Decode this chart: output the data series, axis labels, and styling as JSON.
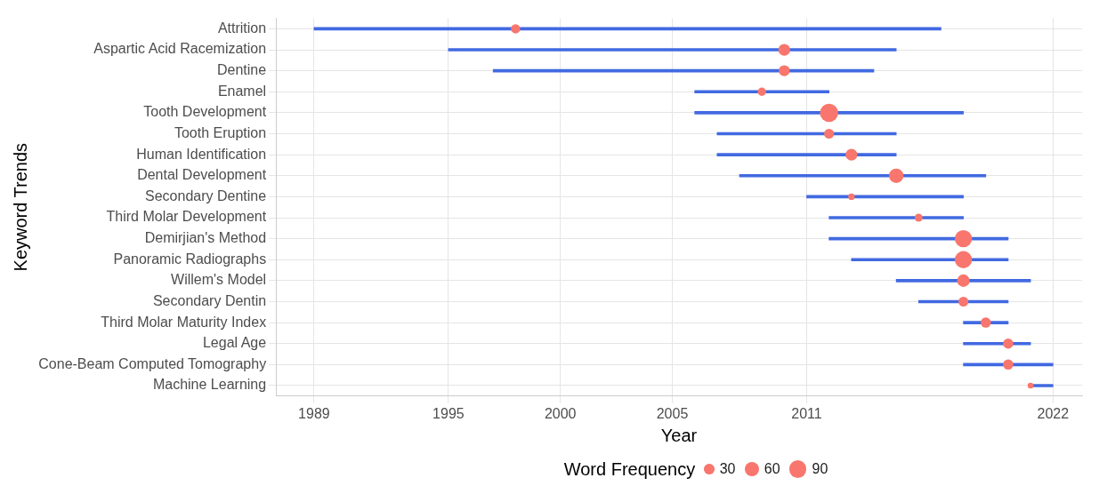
{
  "chart_data": {
    "type": "bar",
    "orientation": "horizontal",
    "xlabel": "Year",
    "ylabel": "Keyword Trends",
    "legend_title": "Word Frequency",
    "grid": true,
    "categories": [
      "Attrition",
      "Aspartic Acid Racemization",
      "Dentine",
      "Enamel",
      "Tooth Development",
      "Tooth Eruption",
      "Human Identification",
      "Dental Development",
      "Secondary Dentine",
      "Third Molar Development",
      "Demirjian's Method",
      "Panoramic Radiographs",
      "Willem's Model",
      "Secondary Dentin",
      "Third Molar Maturity Index",
      "Legal Age",
      "Cone-Beam Computed Tomography",
      "Machine Learning"
    ],
    "xlim": [
      1987.3,
      2023.3
    ],
    "xticks": [
      1989,
      1995,
      2000,
      2005,
      2011,
      2022
    ],
    "size_legend": [
      30,
      60,
      90
    ],
    "series": [
      {
        "color": "#4169e1",
        "base": [
          1989,
          1995,
          1997,
          2006,
          2006,
          2007,
          2007,
          2008,
          2011,
          2012,
          2012,
          2013,
          2015,
          2016,
          2018,
          2018,
          2018,
          2021
        ],
        "values": [
          28,
          20,
          17,
          6,
          12,
          8,
          8,
          11,
          7,
          6,
          8,
          7,
          6,
          4,
          2,
          3,
          4,
          1
        ]
      },
      {
        "type": "bubble",
        "color": "#f8766d",
        "values": [
          1998,
          2010,
          2010,
          2009,
          2012,
          2012,
          2013,
          2015,
          2013,
          2016,
          2018,
          2018,
          2018,
          2018,
          2019,
          2020,
          2020,
          2021
        ],
        "sizes": [
          25,
          40,
          35,
          20,
          95,
          28,
          40,
          60,
          12,
          18,
          85,
          85,
          45,
          28,
          30,
          30,
          30,
          10
        ]
      }
    ]
  }
}
